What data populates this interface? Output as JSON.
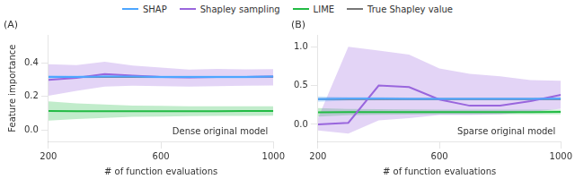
{
  "chart_data": [
    {
      "type": "line",
      "title": "(A)",
      "annotation": "Dense original model",
      "xlabel": "# of function evaluations",
      "ylabel": "Feature importance",
      "x": [
        200,
        300,
        400,
        500,
        600,
        700,
        800,
        900,
        1000
      ],
      "xlim": [
        200,
        1000
      ],
      "xticks": [
        200,
        600,
        1000
      ],
      "ylim": [
        -0.07,
        0.57
      ],
      "yticks": [
        {
          "value": 0.0,
          "label": "0.0"
        },
        0.2,
        0.4
      ],
      "grid": false,
      "legend": "top",
      "series": [
        {
          "name": "SHAP",
          "color": "#4da6ff",
          "values": [
            0.318,
            0.318,
            0.32,
            0.32,
            0.318,
            0.318,
            0.318,
            0.318,
            0.32
          ],
          "lower": [
            0.308,
            0.31,
            0.312,
            0.312,
            0.31,
            0.31,
            0.31,
            0.31,
            0.312
          ],
          "upper": [
            0.328,
            0.326,
            0.328,
            0.328,
            0.326,
            0.326,
            0.326,
            0.326,
            0.328
          ]
        },
        {
          "name": "Shapley sampling",
          "color": "#9966dd",
          "values": [
            0.3,
            0.312,
            0.335,
            0.326,
            0.318,
            0.315,
            0.318,
            0.318,
            0.32
          ],
          "lower": [
            0.205,
            0.235,
            0.26,
            0.265,
            0.262,
            0.26,
            0.263,
            0.265,
            0.267
          ],
          "upper": [
            0.395,
            0.389,
            0.41,
            0.387,
            0.374,
            0.362,
            0.367,
            0.363,
            0.365
          ]
        },
        {
          "name": "LIME",
          "color": "#22bb44",
          "values": [
            0.113,
            0.112,
            0.112,
            0.112,
            0.112,
            0.112,
            0.112,
            0.113,
            0.113
          ],
          "lower": [
            0.055,
            0.065,
            0.072,
            0.078,
            0.08,
            0.082,
            0.083,
            0.084,
            0.085
          ],
          "upper": [
            0.171,
            0.159,
            0.152,
            0.146,
            0.144,
            0.142,
            0.141,
            0.142,
            0.141
          ]
        },
        {
          "name": "True Shapley value",
          "color": "#777777",
          "values": [
            0.318,
            0.318,
            0.318,
            0.318,
            0.318,
            0.318,
            0.318,
            0.318,
            0.318
          ]
        }
      ]
    },
    {
      "type": "line",
      "title": "(B)",
      "annotation": "Sparse original model",
      "xlabel": "# of function evaluations",
      "x": [
        200,
        300,
        400,
        500,
        600,
        700,
        800,
        900,
        1000
      ],
      "xlim": [
        200,
        1000
      ],
      "xticks": [
        200,
        600,
        1000
      ],
      "ylim": [
        -0.22,
        1.15
      ],
      "yticks": [
        {
          "value": 0.0,
          "label": "0.0"
        },
        0.5,
        {
          "value": 1.0,
          "label": "1.0"
        }
      ],
      "grid": false,
      "legend": "top",
      "series": [
        {
          "name": "SHAP",
          "color": "#4da6ff",
          "values": [
            0.325,
            0.33,
            0.33,
            0.328,
            0.328,
            0.328,
            0.328,
            0.328,
            0.33
          ],
          "lower": [
            0.29,
            0.308,
            0.31,
            0.31,
            0.31,
            0.31,
            0.31,
            0.31,
            0.312
          ],
          "upper": [
            0.36,
            0.352,
            0.35,
            0.346,
            0.346,
            0.346,
            0.346,
            0.346,
            0.348
          ]
        },
        {
          "name": "Shapley sampling",
          "color": "#9966dd",
          "values": [
            0.0,
            0.02,
            0.5,
            0.48,
            0.32,
            0.24,
            0.24,
            0.3,
            0.38
          ],
          "lower": [
            -0.08,
            -0.12,
            0.05,
            0.08,
            0.12,
            0.12,
            0.13,
            0.16,
            0.2
          ],
          "upper": [
            0.08,
            1.0,
            0.95,
            0.9,
            0.72,
            0.65,
            0.62,
            0.57,
            0.56
          ]
        },
        {
          "name": "LIME",
          "color": "#22bb44",
          "values": [
            0.155,
            0.158,
            0.158,
            0.158,
            0.158,
            0.158,
            0.158,
            0.158,
            0.16
          ],
          "lower": [
            0.1,
            0.118,
            0.122,
            0.125,
            0.128,
            0.128,
            0.128,
            0.128,
            0.13
          ],
          "upper": [
            0.21,
            0.198,
            0.194,
            0.191,
            0.188,
            0.188,
            0.188,
            0.188,
            0.19
          ]
        },
        {
          "name": "True Shapley value",
          "color": "#777777",
          "values": [
            0.325,
            0.325,
            0.325,
            0.325,
            0.325,
            0.325,
            0.325,
            0.325,
            0.325
          ]
        }
      ]
    }
  ]
}
